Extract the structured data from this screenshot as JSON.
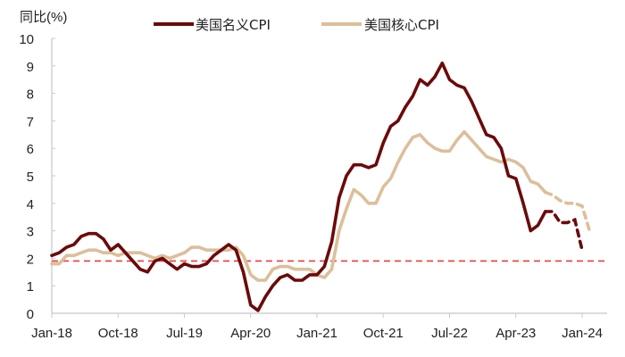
{
  "chart_data": {
    "type": "line",
    "title": "",
    "ylabel": "同比(%)",
    "xlabel": "",
    "ylim": [
      0,
      10
    ],
    "yticks": [
      0,
      1,
      2,
      3,
      4,
      5,
      6,
      7,
      8,
      9,
      10
    ],
    "xtick_labels": [
      "Jan-18",
      "Oct-18",
      "Jul-19",
      "Apr-20",
      "Jan-21",
      "Oct-21",
      "Jul-22",
      "Apr-23",
      "Jan-24"
    ],
    "grid": false,
    "legend_position": "top",
    "reference_line": {
      "value": 1.9,
      "style": "dashed",
      "color": "#f03a3a"
    },
    "x_start": "Jan-18",
    "x_step": "monthly",
    "forecast_start_index": 67,
    "series": [
      {
        "name": "美国名义CPI",
        "color": "#6b0a0a",
        "values": [
          2.1,
          2.2,
          2.4,
          2.5,
          2.8,
          2.9,
          2.9,
          2.7,
          2.3,
          2.5,
          2.2,
          1.9,
          1.6,
          1.5,
          1.9,
          2.0,
          1.8,
          1.6,
          1.8,
          1.7,
          1.7,
          1.8,
          2.1,
          2.3,
          2.5,
          2.3,
          1.5,
          0.3,
          0.1,
          0.6,
          1.0,
          1.3,
          1.4,
          1.2,
          1.2,
          1.4,
          1.4,
          1.7,
          2.6,
          4.2,
          5.0,
          5.4,
          5.4,
          5.3,
          5.4,
          6.2,
          6.8,
          7.0,
          7.5,
          7.9,
          8.5,
          8.3,
          8.6,
          9.1,
          8.5,
          8.3,
          8.2,
          7.7,
          7.1,
          6.5,
          6.4,
          6.0,
          5.0,
          4.9,
          4.0,
          3.0,
          3.2,
          3.7,
          3.7,
          3.3,
          3.3,
          3.4,
          2.3,
          null
        ],
        "note": "dashed from index 67 onward"
      },
      {
        "name": "美国核心CPI",
        "color": "#dcbf9a",
        "values": [
          1.8,
          1.8,
          2.1,
          2.1,
          2.2,
          2.3,
          2.3,
          2.2,
          2.2,
          2.1,
          2.2,
          2.2,
          2.2,
          2.1,
          2.0,
          2.1,
          2.0,
          2.1,
          2.2,
          2.4,
          2.4,
          2.3,
          2.3,
          2.3,
          2.3,
          2.4,
          2.1,
          1.4,
          1.2,
          1.2,
          1.6,
          1.7,
          1.7,
          1.6,
          1.6,
          1.6,
          1.4,
          1.3,
          1.6,
          3.0,
          3.8,
          4.5,
          4.3,
          4.0,
          4.0,
          4.6,
          4.9,
          5.5,
          6.0,
          6.4,
          6.5,
          6.2,
          6.0,
          5.9,
          5.9,
          6.3,
          6.6,
          6.3,
          6.0,
          5.7,
          5.6,
          5.5,
          5.6,
          5.5,
          5.3,
          4.8,
          4.7,
          4.4,
          4.3,
          4.1,
          4.0,
          4.0,
          3.9,
          3.0
        ],
        "note": "dashed from index 67 onward"
      }
    ]
  },
  "legend": {
    "items": [
      {
        "label": "美国名义CPI"
      },
      {
        "label": "美国核心CPI"
      }
    ]
  },
  "axis": {
    "y_title": "同比(%)"
  }
}
